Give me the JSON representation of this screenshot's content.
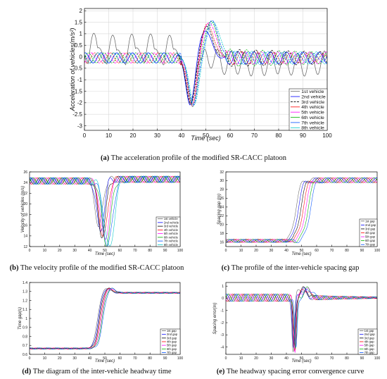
{
  "colors": [
    "#666666",
    "#0000ff",
    "#000000",
    "#ff0000",
    "#ff00ff",
    "#00b000",
    "#0050ff",
    "#00c8c8"
  ],
  "captions": {
    "a": {
      "tag": "(a)",
      "text": " The acceleration profile of the modified SR-CACC platoon"
    },
    "b": {
      "tag": "(b)",
      "text": " The velocity profile of the modified SR-CACC platoon"
    },
    "c": {
      "tag": "(c)",
      "text": " The profile of the inter-vehicle spacing gap"
    },
    "d": {
      "tag": "(d)",
      "text": " The diagram of the inter-vehicle headway time"
    },
    "e": {
      "tag": "(e)",
      "text": " The headway spacing error convergence curve"
    }
  },
  "chart_data": [
    {
      "id": "a",
      "type": "line",
      "xlabel": "Time (sec)",
      "ylabel": "Acceleration of vehicles(m/s²)",
      "xlim": [
        0,
        100
      ],
      "ylim": [
        -3.2,
        2.1
      ],
      "xticks": [
        0,
        10,
        20,
        30,
        40,
        50,
        60,
        70,
        80,
        90,
        100
      ],
      "yticks": [
        -3,
        -2.5,
        -2,
        -1.5,
        -1,
        -0.5,
        0,
        0.5,
        1,
        1.5,
        2
      ],
      "ytick_labels": [
        "-3",
        "-2.5",
        "-2",
        "-1.5",
        "-1",
        "-0.5",
        "0",
        "0.5",
        "1",
        "1.5",
        "2"
      ],
      "grid": true,
      "legend_position": "bottom-right",
      "legend": [
        "1st vehicle",
        "2nd vehicle",
        "3rd vehicle",
        "4th vehicle",
        "5th vehicle",
        "6th vehicle",
        "7th vehicle",
        "8th vehicle"
      ],
      "curve": "accel",
      "n_series": 8,
      "series": [
        {
          "name": "1st vehicle",
          "peak_trough": -2.1,
          "peak_max": 1.1,
          "lag": 0
        },
        {
          "name": "2nd vehicle",
          "peak_trough": -2.15,
          "peak_max": 1.45,
          "lag": 0.6
        },
        {
          "name": "3rd vehicle",
          "peak_trough": -2.1,
          "peak_max": 1.5,
          "lag": 1.2
        },
        {
          "name": "4th vehicle",
          "peak_trough": -2.05,
          "peak_max": 1.55,
          "lag": 1.8
        },
        {
          "name": "5th vehicle",
          "peak_trough": -2.05,
          "peak_max": 1.6,
          "lag": 2.4
        },
        {
          "name": "6th vehicle",
          "peak_trough": -2.0,
          "peak_max": 1.6,
          "lag": 3.0
        },
        {
          "name": "7th vehicle",
          "peak_trough": -2.0,
          "peak_max": 1.6,
          "lag": 3.6
        },
        {
          "name": "8th vehicle",
          "peak_trough": -1.95,
          "peak_max": 1.6,
          "lag": 4.2
        }
      ]
    },
    {
      "id": "b",
      "type": "line",
      "xlabel": "Time (sec)",
      "ylabel": "Velocity of vehicles (m/s)",
      "xlim": [
        0,
        100
      ],
      "ylim": [
        12,
        26
      ],
      "xticks": [
        0,
        10,
        20,
        30,
        40,
        50,
        60,
        70,
        80,
        90,
        100
      ],
      "yticks": [
        12,
        14,
        16,
        18,
        20,
        22,
        24,
        26
      ],
      "grid": false,
      "legend_position": "bottom-right",
      "legend": [
        "1st vehicle",
        "2nd vehicle",
        "3rd vehicle",
        "4th vehicle",
        "5th vehicle",
        "6th vehicle",
        "7th vehicle",
        "8th vehicle"
      ],
      "curve": "velocity",
      "n_series": 8
    },
    {
      "id": "c",
      "type": "line",
      "xlabel": "Time (sec)",
      "ylabel": "Spacing gap (m)",
      "xlim": [
        0,
        100
      ],
      "ylim": [
        15,
        32
      ],
      "xticks": [
        0,
        10,
        20,
        30,
        40,
        50,
        60,
        70,
        80,
        90,
        100
      ],
      "yticks": [
        16,
        18,
        20,
        22,
        24,
        26,
        28,
        30,
        32
      ],
      "grid": false,
      "legend_position": "bottom-right",
      "legend": [
        "1st gap",
        "2nd gap",
        "3rd gap",
        "4th gap",
        "5th gap",
        "6th gap",
        "7th gap"
      ],
      "curve": "spacing",
      "n_series": 7
    },
    {
      "id": "d",
      "type": "line",
      "xlabel": "Time (sec)",
      "ylabel": "Time gap(s)",
      "xlim": [
        0,
        100
      ],
      "ylim": [
        0.6,
        1.4
      ],
      "xticks": [
        0,
        10,
        20,
        30,
        40,
        50,
        60,
        70,
        80,
        90,
        100
      ],
      "yticks": [
        0.6,
        0.7,
        0.8,
        0.9,
        1.0,
        1.1,
        1.2,
        1.3,
        1.4
      ],
      "ytick_labels": [
        "0.6",
        "0.7",
        "0.8",
        "0.9",
        "1",
        "1.1",
        "1.2",
        "1.3",
        "1.4"
      ],
      "grid": false,
      "legend_position": "bottom-right",
      "legend": [
        "1st gap",
        "2nd gap",
        "3rd gap",
        "4th gap",
        "5th gap",
        "6th gap",
        "7th gap"
      ],
      "curve": "headway",
      "n_series": 7
    },
    {
      "id": "e",
      "type": "line",
      "xlabel": "Time (sec)",
      "ylabel": "Spacing error(m)",
      "xlim": [
        0,
        100
      ],
      "ylim": [
        -4.6,
        1.3
      ],
      "xticks": [
        0,
        10,
        20,
        30,
        40,
        50,
        60,
        70,
        80,
        90,
        100
      ],
      "yticks": [
        -4,
        -3,
        -2,
        -1,
        0,
        1
      ],
      "grid": false,
      "legend_position": "bottom-right",
      "legend": [
        "1st gap",
        "2nd gap",
        "3rd gap",
        "4th gap",
        "5th gap",
        "6th gap",
        "7th gap"
      ],
      "curve": "error",
      "n_series": 7
    }
  ]
}
